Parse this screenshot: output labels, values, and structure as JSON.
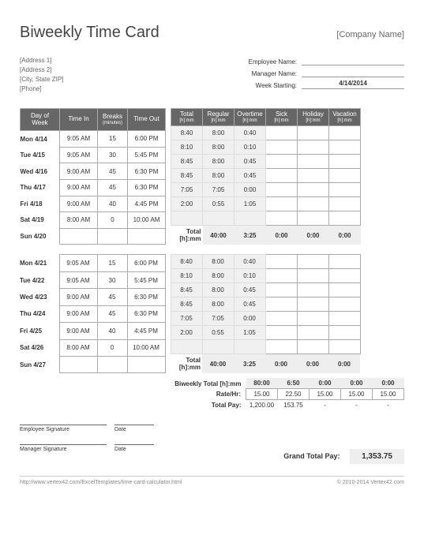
{
  "title": "Biweekly Time Card",
  "company": "[Company Name]",
  "address": {
    "line1": "[Address 1]",
    "line2": "[Address 2]",
    "line3": "[City, State  ZIP]",
    "phone": "[Phone]"
  },
  "labels": {
    "empName": "Employee Name:",
    "mgrName": "Manager Name:",
    "weekStart": "Week Starting:",
    "totalHm": "Total [h]:mm",
    "bwTotal": "Biweekly Total [h]:mm",
    "rateHr": "Rate/Hr:",
    "totalPay": "Total Pay:",
    "grandTotal": "Grand Total Pay:",
    "empSig": "Employee Signature",
    "mgrSig": "Manager Signature",
    "date": "Date"
  },
  "weekStarting": "4/14/2014",
  "headers": {
    "day": "Day of Week",
    "in": "Time In",
    "breaks": "Breaks",
    "breaksSub": "(minutes)",
    "out": "Time Out",
    "total": "Total",
    "regular": "Regular",
    "overtime": "Overtime",
    "sick": "Sick",
    "holiday": "Holiday",
    "vacation": "Vacation",
    "hm": "[h]:mm"
  },
  "week1": [
    {
      "day": "Mon 4/14",
      "in": "9:05 AM",
      "br": "15",
      "out": "6:00 PM",
      "tot": "8:40",
      "reg": "8:00",
      "ot": "0:40",
      "sick": "",
      "hol": "",
      "vac": ""
    },
    {
      "day": "Tue 4/15",
      "in": "9:05 AM",
      "br": "30",
      "out": "5:45 PM",
      "tot": "8:10",
      "reg": "8:00",
      "ot": "0:10",
      "sick": "",
      "hol": "",
      "vac": ""
    },
    {
      "day": "Wed 4/16",
      "in": "9:00 AM",
      "br": "45",
      "out": "6:30 PM",
      "tot": "8:45",
      "reg": "8:00",
      "ot": "0:45",
      "sick": "",
      "hol": "",
      "vac": ""
    },
    {
      "day": "Thu 4/17",
      "in": "9:00 AM",
      "br": "45",
      "out": "6:30 PM",
      "tot": "8:45",
      "reg": "8:00",
      "ot": "0:45",
      "sick": "",
      "hol": "",
      "vac": ""
    },
    {
      "day": "Fri 4/18",
      "in": "9:00 AM",
      "br": "40",
      "out": "4:45 PM",
      "tot": "7:05",
      "reg": "7:05",
      "ot": "0:00",
      "sick": "",
      "hol": "",
      "vac": ""
    },
    {
      "day": "Sat 4/19",
      "in": "8:00 AM",
      "br": "0",
      "out": "10:00 AM",
      "tot": "2:00",
      "reg": "0:55",
      "ot": "1:05",
      "sick": "",
      "hol": "",
      "vac": ""
    },
    {
      "day": "Sun 4/20",
      "in": "",
      "br": "",
      "out": "",
      "tot": "",
      "reg": "",
      "ot": "",
      "sick": "",
      "hol": "",
      "vac": ""
    }
  ],
  "week1Total": {
    "reg": "40:00",
    "ot": "3:25",
    "sick": "0:00",
    "hol": "0:00",
    "vac": "0:00"
  },
  "week2": [
    {
      "day": "Mon 4/21",
      "in": "9:05 AM",
      "br": "15",
      "out": "6:00 PM",
      "tot": "8:40",
      "reg": "8:00",
      "ot": "0:40",
      "sick": "",
      "hol": "",
      "vac": ""
    },
    {
      "day": "Tue 4/22",
      "in": "9:05 AM",
      "br": "30",
      "out": "5:45 PM",
      "tot": "8:10",
      "reg": "8:00",
      "ot": "0:10",
      "sick": "",
      "hol": "",
      "vac": ""
    },
    {
      "day": "Wed 4/23",
      "in": "9:00 AM",
      "br": "45",
      "out": "6:30 PM",
      "tot": "8:45",
      "reg": "8:00",
      "ot": "0:45",
      "sick": "",
      "hol": "",
      "vac": ""
    },
    {
      "day": "Thu 4/24",
      "in": "9:00 AM",
      "br": "45",
      "out": "6:30 PM",
      "tot": "8:45",
      "reg": "8:00",
      "ot": "0:45",
      "sick": "",
      "hol": "",
      "vac": ""
    },
    {
      "day": "Fri 4/25",
      "in": "9:00 AM",
      "br": "40",
      "out": "4:45 PM",
      "tot": "7:05",
      "reg": "7:05",
      "ot": "0:00",
      "sick": "",
      "hol": "",
      "vac": ""
    },
    {
      "day": "Sat 4/26",
      "in": "8:00 AM",
      "br": "0",
      "out": "10:00 AM",
      "tot": "2:00",
      "reg": "0:55",
      "ot": "1:05",
      "sick": "",
      "hol": "",
      "vac": ""
    },
    {
      "day": "Sun 4/27",
      "in": "",
      "br": "",
      "out": "",
      "tot": "",
      "reg": "",
      "ot": "",
      "sick": "",
      "hol": "",
      "vac": ""
    }
  ],
  "week2Total": {
    "reg": "40:00",
    "ot": "3:25",
    "sick": "0:00",
    "hol": "0:00",
    "vac": "0:00"
  },
  "biweekly": {
    "reg": "80:00",
    "ot": "6:50",
    "sick": "0:00",
    "hol": "0:00",
    "vac": "0:00"
  },
  "rate": {
    "reg": "15.00",
    "ot": "22.50",
    "sick": "15.00",
    "hol": "15.00",
    "vac": "15.00"
  },
  "pay": {
    "reg": "1,200.00",
    "ot": "153.75",
    "sick": "-",
    "hol": "-",
    "vac": "-"
  },
  "grandTotal": "1,353.75",
  "footer": {
    "url": "http://www.vertex42.com/ExcelTemplates/time-card-calculator.html",
    "copy": "© 2010-2014 Vertex42.com"
  }
}
